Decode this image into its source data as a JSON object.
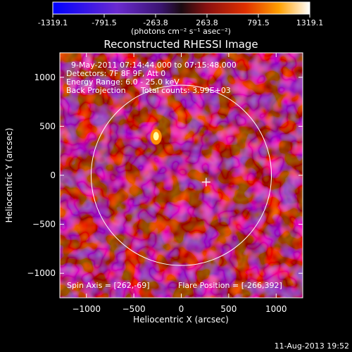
{
  "colorbar": {
    "ticks": [
      "-1319.1",
      "-791.5",
      "-263.8",
      "263.8",
      "791.5",
      "1319.1"
    ],
    "tick_values": [
      -1319.1,
      -791.5,
      -263.8,
      263.8,
      791.5,
      1319.1
    ],
    "range": [
      -1319.1,
      1319.1
    ],
    "unit_label": "(photons cm⁻² s⁻¹ asec⁻²)"
  },
  "chart_data": {
    "type": "heatmap",
    "title": "Reconstructed RHESSI Image",
    "xlabel": "Heliocentric X (arcsec)",
    "ylabel": "Heliocentric Y (arcsec)",
    "xlim": [
      -1280,
      1280
    ],
    "ylim": [
      -1250,
      1250
    ],
    "x_ticks": [
      -1000,
      -500,
      0,
      500,
      1000
    ],
    "y_ticks": [
      -1000,
      -500,
      0,
      500,
      1000
    ],
    "x_tick_labels": [
      "−1000",
      "−500",
      "0",
      "500",
      "1000"
    ],
    "y_tick_labels": [
      "1000",
      "500",
      "0",
      "−500",
      "−1000"
    ],
    "annotations": [
      "9-May-2011 07:14:44.000 to 07:15:48.000",
      "Detectors: 7F 8F 9F, Att 0",
      "Energy Range: 6.0 - 25.0 keV",
      "Back Projection",
      "Total counts: 3.99E+03"
    ],
    "spin_axis_text": "Spin Axis = [262,-69]",
    "flare_position_text": "Flare Position = [-266,392]",
    "spin_axis": [
      262,
      -69
    ],
    "flare_position": [
      -266,
      392
    ],
    "solar_radius_arcsec": 950
  },
  "footer": {
    "date": "11-Aug-2013 19:52"
  },
  "colors": {
    "background": "#000000",
    "low": "#1a0070",
    "mid_low": "#5a2a9a",
    "mid_high": "#d42000",
    "high": "#ffffff"
  }
}
